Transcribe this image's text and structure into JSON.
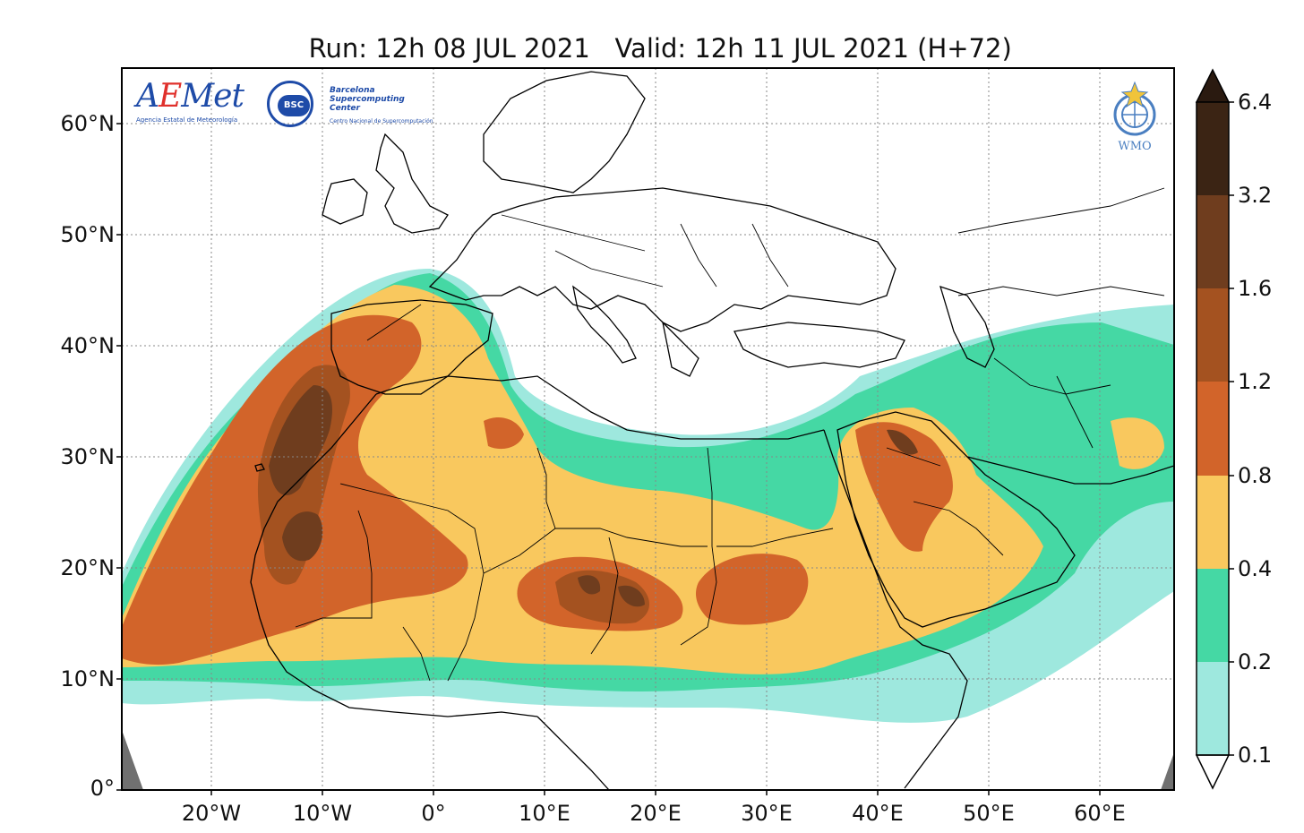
{
  "title": {
    "run": "Run: 12h 08 JUL 2021",
    "valid": "Valid: 12h 11 JUL 2021 (H+72)"
  },
  "logos": {
    "aemet": {
      "word_a": "A",
      "word_e": "E",
      "word_rest": "Met",
      "subtitle": "Agencia Estatal de Meteorología"
    },
    "bsc": {
      "badge": "BSC",
      "name_line1": "Barcelona",
      "name_line2": "Supercomputing",
      "name_line3": "Center",
      "subtitle": "Centro Nacional de Supercomputación"
    },
    "wmo": {
      "label": "WMO"
    }
  },
  "map": {
    "extent": {
      "lon_min": -28,
      "lon_max": 67,
      "lat_min": 0,
      "lat_max": 65
    },
    "lat_ticks": [
      {
        "value": 60,
        "label": "60°N"
      },
      {
        "value": 50,
        "label": "50°N"
      },
      {
        "value": 40,
        "label": "40°N"
      },
      {
        "value": 30,
        "label": "30°N"
      },
      {
        "value": 20,
        "label": "20°N"
      },
      {
        "value": 10,
        "label": "10°N"
      },
      {
        "value": 0,
        "label": "0°"
      }
    ],
    "lon_ticks": [
      {
        "value": -20,
        "label": "20°W"
      },
      {
        "value": -10,
        "label": "10°W"
      },
      {
        "value": 0,
        "label": "0°"
      },
      {
        "value": 10,
        "label": "10°E"
      },
      {
        "value": 20,
        "label": "20°E"
      },
      {
        "value": 30,
        "label": "30°E"
      },
      {
        "value": 40,
        "label": "40°E"
      },
      {
        "value": 50,
        "label": "50°E"
      },
      {
        "value": 60,
        "label": "60°E"
      }
    ],
    "gridlines": "dotted"
  },
  "colorbar": {
    "levels": [
      "0.1",
      "0.2",
      "0.4",
      "0.8",
      "1.2",
      "1.6",
      "3.2",
      "6.4"
    ],
    "colors": [
      "#9ee8de",
      "#45d8a4",
      "#f9c85e",
      "#d2642a",
      "#a45220",
      "#6f3d1e",
      "#3b2414"
    ],
    "extend": "both",
    "under_color": "#ffffff",
    "over_color": "#2a1a10"
  },
  "colors": {
    "ocean": "#ffffff",
    "land": "#ffffff",
    "border": "#000000",
    "grid": "#888888",
    "offgrid": "#707070"
  }
}
